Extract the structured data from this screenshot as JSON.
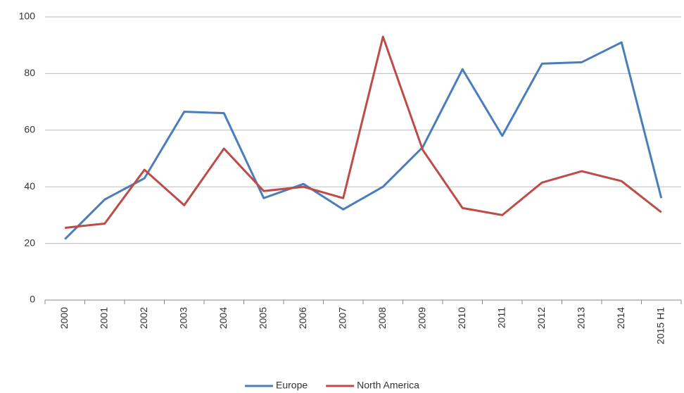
{
  "chart_data": {
    "type": "line",
    "categories": [
      "2000",
      "2001",
      "2002",
      "2003",
      "2004",
      "2005",
      "2006",
      "2007",
      "2008",
      "2009",
      "2010",
      "2011",
      "2012",
      "2013",
      "2014",
      "2015 H1"
    ],
    "series": [
      {
        "name": "Europe",
        "color": "#4a7ebb",
        "values": [
          21.5,
          35.5,
          43,
          66.5,
          66,
          36,
          41,
          32,
          40,
          54,
          81.5,
          58,
          83.5,
          84,
          91,
          36
        ]
      },
      {
        "name": "North America",
        "color": "#be4b48",
        "values": [
          25.5,
          27,
          46,
          33.5,
          53.5,
          38.5,
          40,
          36,
          93,
          53,
          32.5,
          30,
          41.5,
          45.5,
          42,
          31
        ]
      }
    ],
    "ylim": [
      0,
      100
    ],
    "yticks": [
      0,
      20,
      40,
      60,
      80,
      100
    ],
    "grid": true,
    "legend": "bottom"
  }
}
